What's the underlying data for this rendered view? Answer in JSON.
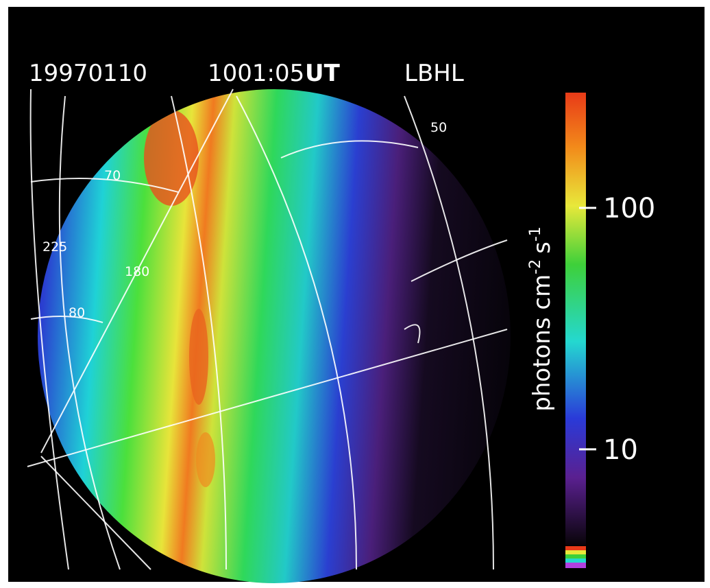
{
  "title": {
    "date": "19970110",
    "time": "1001:05",
    "ut": "UT",
    "filter": "LBHL"
  },
  "grid_labels": [
    "50",
    "70",
    "225",
    "180",
    "80"
  ],
  "colorbar": {
    "label": {
      "unit1": "photons cm",
      "exp1": "-2",
      "unit2": "s",
      "exp2": "-1"
    },
    "scale": "log",
    "lim": [
      4,
      300
    ],
    "ticks": [
      10,
      100
    ]
  }
}
